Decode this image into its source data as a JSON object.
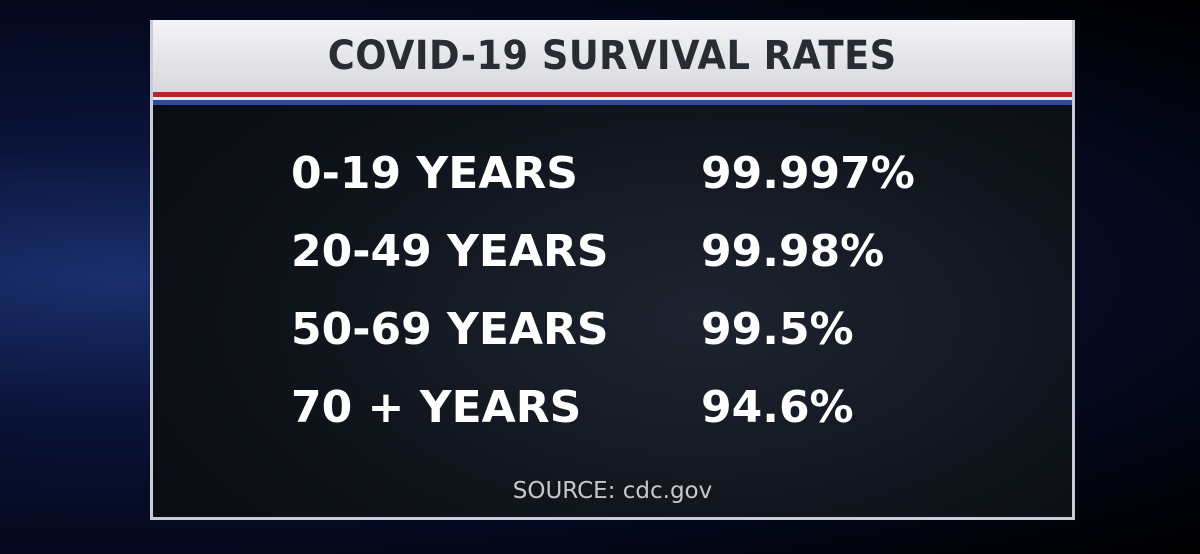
{
  "header": {
    "title": "COVID-19 SURVIVAL RATES"
  },
  "table": {
    "rows": [
      [
        "0-19 YEARS",
        "99.997%"
      ],
      [
        "20-49 YEARS",
        "99.98%"
      ],
      [
        "50-69 YEARS",
        "99.5%"
      ],
      [
        "70 + YEARS",
        "94.6%"
      ]
    ]
  },
  "footer": {
    "source": "SOURCE: cdc.gov"
  }
}
